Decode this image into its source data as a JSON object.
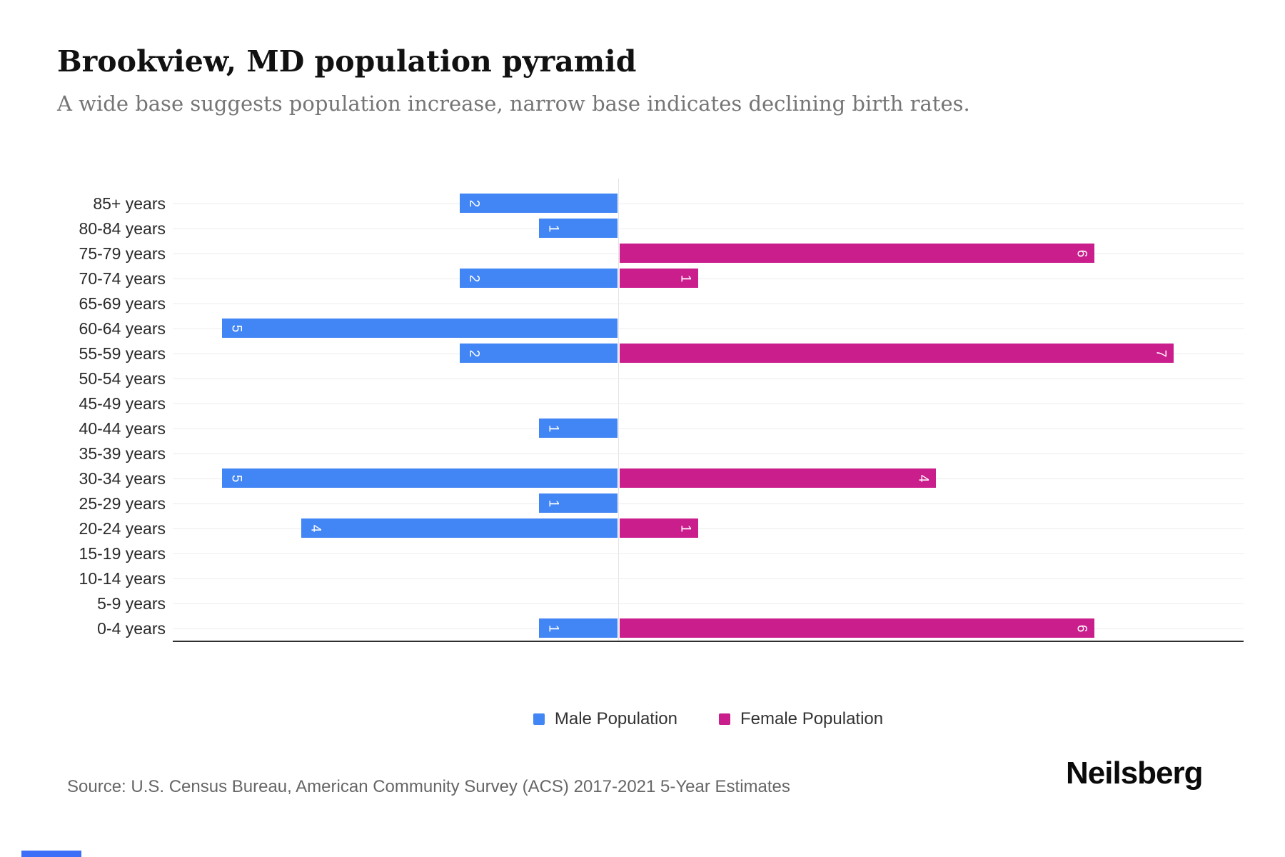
{
  "header": {
    "title": "Brookview, MD population pyramid",
    "subtitle": "A wide base suggests population increase, narrow base indicates declining birth rates."
  },
  "chart_data": {
    "type": "bar",
    "variant": "population-pyramid",
    "orientation": "horizontal",
    "categories": [
      "85+ years",
      "80-84 years",
      "75-79 years",
      "70-74 years",
      "65-69 years",
      "60-64 years",
      "55-59 years",
      "50-54 years",
      "45-49 years",
      "40-44 years",
      "35-39 years",
      "30-34 years",
      "25-29 years",
      "20-24 years",
      "15-19 years",
      "10-14 years",
      "5-9 years",
      "0-4 years"
    ],
    "series": [
      {
        "name": "Male Population",
        "color": "#4285F4",
        "direction": "left",
        "values": [
          2,
          1,
          0,
          2,
          0,
          5,
          2,
          0,
          0,
          1,
          0,
          5,
          1,
          4,
          0,
          0,
          0,
          1
        ]
      },
      {
        "name": "Female Population",
        "color": "#C91E8C",
        "direction": "right",
        "values": [
          0,
          0,
          6,
          1,
          0,
          0,
          7,
          0,
          0,
          0,
          0,
          4,
          0,
          1,
          0,
          0,
          0,
          6
        ]
      }
    ],
    "value_labels": "inside-end, rotated 90deg, white",
    "grid": "horizontal lines per category + center zero line",
    "legend_position": "bottom-center"
  },
  "legend": {
    "items": [
      {
        "label": "Male Population",
        "color": "#4285F4"
      },
      {
        "label": "Female Population",
        "color": "#C91E8C"
      }
    ]
  },
  "footer": {
    "source": "Source: U.S. Census Bureau, American Community Survey (ACS) 2017-2021 5-Year Estimates",
    "brand": "Neilsberg"
  }
}
